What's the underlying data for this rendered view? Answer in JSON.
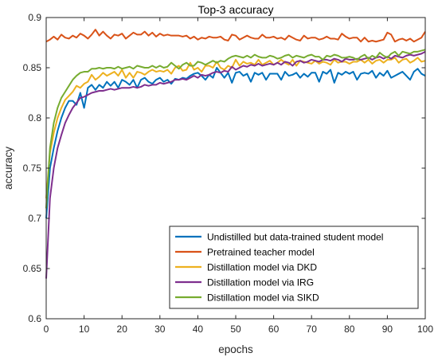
{
  "chart_data": {
    "type": "line",
    "title": "Top-3 accuracy",
    "xlabel": "epochs",
    "ylabel": "accuracy",
    "xlim": [
      0,
      100
    ],
    "ylim": [
      0.6,
      0.9
    ],
    "xticks": [
      "0",
      "10",
      "20",
      "30",
      "40",
      "50",
      "60",
      "70",
      "80",
      "90",
      "100"
    ],
    "yticks": [
      "0.6",
      "0.65",
      "0.7",
      "0.75",
      "0.8",
      "0.85",
      "0.9"
    ],
    "grid": false,
    "legend_position": "bottom-right",
    "series": [
      {
        "name": "Undistilled but data-trained student model",
        "color": "#0072BD",
        "x": [
          0,
          1,
          2,
          3,
          4,
          5,
          6,
          7,
          8,
          9,
          10,
          11,
          12,
          13,
          14,
          15,
          16,
          17,
          18,
          19,
          20,
          21,
          22,
          23,
          24,
          25,
          26,
          27,
          28,
          29,
          30,
          31,
          32,
          33,
          34,
          35,
          36,
          37,
          38,
          39,
          40,
          41,
          42,
          43,
          44,
          45,
          46,
          47,
          48,
          49,
          50,
          51,
          52,
          53,
          54,
          55,
          56,
          57,
          58,
          59,
          60,
          61,
          62,
          63,
          64,
          65,
          66,
          67,
          68,
          69,
          70,
          71,
          72,
          73,
          74,
          75,
          76,
          77,
          78,
          79,
          80,
          81,
          82,
          83,
          84,
          85,
          86,
          87,
          88,
          89,
          90,
          91,
          92,
          93,
          94,
          95,
          96,
          97,
          98,
          99,
          100
        ],
        "values": [
          0.7,
          0.75,
          0.77,
          0.787,
          0.8,
          0.81,
          0.817,
          0.817,
          0.813,
          0.825,
          0.81,
          0.83,
          0.833,
          0.828,
          0.833,
          0.83,
          0.836,
          0.832,
          0.836,
          0.83,
          0.838,
          0.836,
          0.833,
          0.838,
          0.83,
          0.838,
          0.84,
          0.836,
          0.834,
          0.838,
          0.84,
          0.836,
          0.838,
          0.834,
          0.839,
          0.838,
          0.84,
          0.839,
          0.842,
          0.844,
          0.845,
          0.842,
          0.838,
          0.843,
          0.84,
          0.85,
          0.845,
          0.84,
          0.845,
          0.835,
          0.845,
          0.846,
          0.842,
          0.844,
          0.836,
          0.845,
          0.843,
          0.845,
          0.838,
          0.844,
          0.844,
          0.844,
          0.838,
          0.846,
          0.842,
          0.843,
          0.845,
          0.84,
          0.844,
          0.841,
          0.845,
          0.845,
          0.836,
          0.846,
          0.844,
          0.848,
          0.835,
          0.845,
          0.843,
          0.846,
          0.844,
          0.846,
          0.838,
          0.844,
          0.845,
          0.844,
          0.847,
          0.84,
          0.845,
          0.842,
          0.847,
          0.84,
          0.842,
          0.844,
          0.846,
          0.842,
          0.838,
          0.846,
          0.849,
          0.844,
          0.842
        ]
      },
      {
        "name": "Pretrained teacher model",
        "color": "#D95319",
        "x": [
          0,
          1,
          2,
          3,
          4,
          5,
          6,
          7,
          8,
          9,
          10,
          11,
          12,
          13,
          14,
          15,
          16,
          17,
          18,
          19,
          20,
          21,
          22,
          23,
          24,
          25,
          26,
          27,
          28,
          29,
          30,
          31,
          32,
          33,
          34,
          35,
          36,
          37,
          38,
          39,
          40,
          41,
          42,
          43,
          44,
          45,
          46,
          47,
          48,
          49,
          50,
          51,
          52,
          53,
          54,
          55,
          56,
          57,
          58,
          59,
          60,
          61,
          62,
          63,
          64,
          65,
          66,
          67,
          68,
          69,
          70,
          71,
          72,
          73,
          74,
          75,
          76,
          77,
          78,
          79,
          80,
          81,
          82,
          83,
          84,
          85,
          86,
          87,
          88,
          89,
          90,
          91,
          92,
          93,
          94,
          95,
          96,
          97,
          98,
          99,
          100
        ],
        "values": [
          0.876,
          0.878,
          0.881,
          0.878,
          0.883,
          0.88,
          0.879,
          0.882,
          0.88,
          0.884,
          0.882,
          0.879,
          0.883,
          0.888,
          0.882,
          0.886,
          0.882,
          0.879,
          0.883,
          0.882,
          0.884,
          0.879,
          0.882,
          0.885,
          0.883,
          0.883,
          0.886,
          0.882,
          0.885,
          0.881,
          0.884,
          0.882,
          0.883,
          0.882,
          0.882,
          0.882,
          0.881,
          0.882,
          0.879,
          0.881,
          0.878,
          0.88,
          0.879,
          0.881,
          0.88,
          0.88,
          0.881,
          0.878,
          0.877,
          0.883,
          0.882,
          0.878,
          0.88,
          0.882,
          0.88,
          0.879,
          0.879,
          0.883,
          0.88,
          0.88,
          0.881,
          0.879,
          0.88,
          0.878,
          0.882,
          0.88,
          0.878,
          0.877,
          0.882,
          0.879,
          0.88,
          0.88,
          0.878,
          0.879,
          0.881,
          0.879,
          0.879,
          0.878,
          0.884,
          0.881,
          0.879,
          0.88,
          0.88,
          0.876,
          0.88,
          0.876,
          0.877,
          0.876,
          0.877,
          0.878,
          0.885,
          0.883,
          0.876,
          0.878,
          0.879,
          0.877,
          0.879,
          0.876,
          0.878,
          0.88,
          0.886
        ]
      },
      {
        "name": "Distillation model via DKD",
        "color": "#EDB120",
        "x": [
          0,
          1,
          2,
          3,
          4,
          5,
          6,
          7,
          8,
          9,
          10,
          11,
          12,
          13,
          14,
          15,
          16,
          17,
          18,
          19,
          20,
          21,
          22,
          23,
          24,
          25,
          26,
          27,
          28,
          29,
          30,
          31,
          32,
          33,
          34,
          35,
          36,
          37,
          38,
          39,
          40,
          41,
          42,
          43,
          44,
          45,
          46,
          47,
          48,
          49,
          50,
          51,
          52,
          53,
          54,
          55,
          56,
          57,
          58,
          59,
          60,
          61,
          62,
          63,
          64,
          65,
          66,
          67,
          68,
          69,
          70,
          71,
          72,
          73,
          74,
          75,
          76,
          77,
          78,
          79,
          80,
          81,
          82,
          83,
          84,
          85,
          86,
          87,
          88,
          89,
          90,
          91,
          92,
          93,
          94,
          95,
          96,
          97,
          98,
          99,
          100
        ],
        "values": [
          0.72,
          0.765,
          0.785,
          0.8,
          0.81,
          0.818,
          0.822,
          0.826,
          0.832,
          0.83,
          0.834,
          0.836,
          0.843,
          0.838,
          0.841,
          0.845,
          0.842,
          0.844,
          0.846,
          0.842,
          0.848,
          0.84,
          0.845,
          0.84,
          0.846,
          0.845,
          0.843,
          0.846,
          0.848,
          0.846,
          0.847,
          0.846,
          0.848,
          0.844,
          0.85,
          0.852,
          0.847,
          0.848,
          0.855,
          0.848,
          0.85,
          0.846,
          0.852,
          0.852,
          0.85,
          0.856,
          0.85,
          0.848,
          0.852,
          0.85,
          0.858,
          0.852,
          0.856,
          0.854,
          0.855,
          0.853,
          0.858,
          0.853,
          0.855,
          0.857,
          0.853,
          0.855,
          0.858,
          0.855,
          0.853,
          0.858,
          0.852,
          0.857,
          0.856,
          0.855,
          0.854,
          0.857,
          0.854,
          0.856,
          0.855,
          0.853,
          0.858,
          0.855,
          0.856,
          0.856,
          0.854,
          0.856,
          0.856,
          0.858,
          0.855,
          0.858,
          0.854,
          0.857,
          0.858,
          0.855,
          0.858,
          0.858,
          0.86,
          0.855,
          0.858,
          0.859,
          0.855,
          0.857,
          0.86,
          0.856,
          0.857
        ]
      },
      {
        "name": "Distillation model via IRG",
        "color": "#7E2F8E",
        "x": [
          0,
          1,
          2,
          3,
          4,
          5,
          6,
          7,
          8,
          9,
          10,
          11,
          12,
          13,
          14,
          15,
          16,
          17,
          18,
          19,
          20,
          21,
          22,
          23,
          24,
          25,
          26,
          27,
          28,
          29,
          30,
          31,
          32,
          33,
          34,
          35,
          36,
          37,
          38,
          39,
          40,
          41,
          42,
          43,
          44,
          45,
          46,
          47,
          48,
          49,
          50,
          51,
          52,
          53,
          54,
          55,
          56,
          57,
          58,
          59,
          60,
          61,
          62,
          63,
          64,
          65,
          66,
          67,
          68,
          69,
          70,
          71,
          72,
          73,
          74,
          75,
          76,
          77,
          78,
          79,
          80,
          81,
          82,
          83,
          84,
          85,
          86,
          87,
          88,
          89,
          90,
          91,
          92,
          93,
          94,
          95,
          96,
          97,
          98,
          99,
          100
        ],
        "values": [
          0.64,
          0.72,
          0.75,
          0.77,
          0.783,
          0.795,
          0.803,
          0.81,
          0.815,
          0.82,
          0.821,
          0.823,
          0.825,
          0.826,
          0.827,
          0.827,
          0.828,
          0.829,
          0.828,
          0.829,
          0.83,
          0.83,
          0.83,
          0.831,
          0.83,
          0.831,
          0.833,
          0.832,
          0.833,
          0.833,
          0.835,
          0.834,
          0.835,
          0.836,
          0.838,
          0.838,
          0.839,
          0.838,
          0.84,
          0.842,
          0.84,
          0.843,
          0.842,
          0.843,
          0.845,
          0.846,
          0.845,
          0.847,
          0.846,
          0.851,
          0.848,
          0.85,
          0.852,
          0.851,
          0.853,
          0.852,
          0.854,
          0.852,
          0.853,
          0.854,
          0.853,
          0.855,
          0.853,
          0.856,
          0.855,
          0.852,
          0.856,
          0.857,
          0.855,
          0.856,
          0.858,
          0.857,
          0.856,
          0.858,
          0.858,
          0.857,
          0.859,
          0.858,
          0.856,
          0.859,
          0.858,
          0.858,
          0.859,
          0.858,
          0.859,
          0.86,
          0.858,
          0.86,
          0.861,
          0.859,
          0.861,
          0.859,
          0.862,
          0.861,
          0.86,
          0.862,
          0.863,
          0.862,
          0.863,
          0.864,
          0.866
        ]
      },
      {
        "name": "Distillation model via SIKD",
        "color": "#77AC30",
        "x": [
          0,
          1,
          2,
          3,
          4,
          5,
          6,
          7,
          8,
          9,
          10,
          11,
          12,
          13,
          14,
          15,
          16,
          17,
          18,
          19,
          20,
          21,
          22,
          23,
          24,
          25,
          26,
          27,
          28,
          29,
          30,
          31,
          32,
          33,
          34,
          35,
          36,
          37,
          38,
          39,
          40,
          41,
          42,
          43,
          44,
          45,
          46,
          47,
          48,
          49,
          50,
          51,
          52,
          53,
          54,
          55,
          56,
          57,
          58,
          59,
          60,
          61,
          62,
          63,
          64,
          65,
          66,
          67,
          68,
          69,
          70,
          71,
          72,
          73,
          74,
          75,
          76,
          77,
          78,
          79,
          80,
          81,
          82,
          83,
          84,
          85,
          86,
          87,
          88,
          89,
          90,
          91,
          92,
          93,
          94,
          95,
          96,
          97,
          98,
          99,
          100
        ],
        "values": [
          0.71,
          0.77,
          0.795,
          0.81,
          0.82,
          0.826,
          0.832,
          0.838,
          0.842,
          0.845,
          0.846,
          0.846,
          0.849,
          0.849,
          0.85,
          0.849,
          0.85,
          0.85,
          0.849,
          0.851,
          0.849,
          0.85,
          0.851,
          0.849,
          0.852,
          0.851,
          0.85,
          0.85,
          0.852,
          0.85,
          0.852,
          0.85,
          0.851,
          0.855,
          0.852,
          0.849,
          0.853,
          0.855,
          0.852,
          0.852,
          0.856,
          0.855,
          0.853,
          0.855,
          0.857,
          0.855,
          0.857,
          0.856,
          0.859,
          0.861,
          0.862,
          0.861,
          0.86,
          0.862,
          0.86,
          0.863,
          0.861,
          0.86,
          0.86,
          0.862,
          0.861,
          0.859,
          0.86,
          0.862,
          0.863,
          0.86,
          0.862,
          0.861,
          0.86,
          0.862,
          0.863,
          0.861,
          0.861,
          0.858,
          0.862,
          0.861,
          0.863,
          0.862,
          0.86,
          0.86,
          0.861,
          0.86,
          0.858,
          0.861,
          0.863,
          0.859,
          0.862,
          0.86,
          0.865,
          0.862,
          0.86,
          0.864,
          0.866,
          0.862,
          0.866,
          0.865,
          0.864,
          0.866,
          0.866,
          0.867,
          0.868
        ]
      }
    ]
  }
}
